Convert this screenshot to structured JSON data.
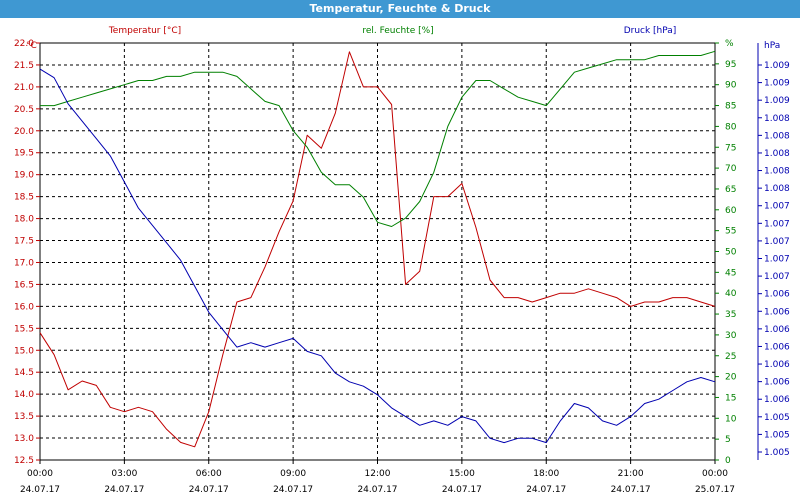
{
  "title": "Temperatur, Feuchte & Druck",
  "colors": {
    "titlebar": "#3f98d2",
    "temperature": "#c00000",
    "humidity": "#008000",
    "pressure": "#0000b0",
    "grid": "#000000"
  },
  "chart_data": {
    "type": "line",
    "title": "Temperatur, Feuchte & Druck",
    "grid": true,
    "x_ticks": [
      {
        "time": "00:00",
        "date": "24.07.17"
      },
      {
        "time": "03:00",
        "date": "24.07.17"
      },
      {
        "time": "06:00",
        "date": "24.07.17"
      },
      {
        "time": "09:00",
        "date": "24.07.17"
      },
      {
        "time": "12:00",
        "date": "24.07.17"
      },
      {
        "time": "15:00",
        "date": "24.07.17"
      },
      {
        "time": "18:00",
        "date": "24.07.17"
      },
      {
        "time": "21:00",
        "date": "24.07.17"
      },
      {
        "time": "00:00",
        "date": "25.07.17"
      }
    ],
    "xlim": [
      0,
      24
    ],
    "axes": {
      "temperature": {
        "unit": "°C",
        "ylim": [
          12.5,
          22.0
        ],
        "ticks": [
          "12.5",
          "13.0",
          "13.5",
          "14.0",
          "14.5",
          "15.0",
          "15.5",
          "16.0",
          "16.5",
          "17.0",
          "17.5",
          "18.0",
          "18.5",
          "19.0",
          "19.5",
          "20.0",
          "20.5",
          "21.0",
          "21.5",
          "22.0"
        ]
      },
      "humidity": {
        "unit": "%",
        "ylim": [
          0,
          100
        ],
        "ticks": [
          "0",
          "5",
          "10",
          "15",
          "20",
          "25",
          "30",
          "35",
          "40",
          "45",
          "50",
          "55",
          "60",
          "65",
          "70",
          "75",
          "80",
          "85",
          "90",
          "95",
          "%"
        ]
      },
      "pressure": {
        "unit": "hPa",
        "ylim": [
          1004.7,
          1009.5
        ],
        "ticks": [
          "1.005",
          "1.005",
          "1.005",
          "1.006",
          "1.006",
          "1.006",
          "1.006",
          "1.006",
          "1.006",
          "1.006",
          "1.007",
          "1.007",
          "1.007",
          "1.007",
          "1.007",
          "1.008",
          "1.008",
          "1.008",
          "1.008",
          "1.008",
          "1.009",
          "1.009",
          "1.009"
        ]
      }
    },
    "series": [
      {
        "name": "Temperatur [°C]",
        "axis": "temperature",
        "x": [
          0,
          0.5,
          1,
          1.5,
          2,
          2.5,
          3,
          3.5,
          4,
          4.5,
          5,
          5.5,
          6,
          6.5,
          7,
          7.5,
          8,
          8.5,
          9,
          9.5,
          10,
          10.5,
          11,
          11.5,
          12,
          12.5,
          13,
          13.5,
          14,
          14.5,
          15,
          15.5,
          16,
          16.5,
          17,
          17.5,
          18,
          18.5,
          19,
          19.5,
          20,
          20.5,
          21,
          21.5,
          22,
          22.5,
          23,
          23.5,
          24
        ],
        "values": [
          15.4,
          14.9,
          14.1,
          14.3,
          14.2,
          13.7,
          13.6,
          13.7,
          13.6,
          13.2,
          12.9,
          12.8,
          13.6,
          14.9,
          16.1,
          16.2,
          16.9,
          17.7,
          18.4,
          19.9,
          19.6,
          20.4,
          21.8,
          21.0,
          21.0,
          20.6,
          16.5,
          16.8,
          18.5,
          18.5,
          18.8,
          17.8,
          16.6,
          16.2,
          16.2,
          16.1,
          16.2,
          16.3,
          16.3,
          16.4,
          16.3,
          16.2,
          16.0,
          16.1,
          16.1,
          16.2,
          16.2,
          16.1,
          16.0
        ],
        "_note": "shifted"
      },
      {
        "name": "rel. Feuchte [%]",
        "axis": "humidity",
        "x": [
          0,
          0.5,
          1,
          1.5,
          2,
          2.5,
          3,
          3.5,
          4,
          4.5,
          5,
          5.5,
          6,
          6.5,
          7,
          7.5,
          8,
          8.5,
          9,
          9.5,
          10,
          10.5,
          11,
          11.5,
          12,
          12.5,
          13,
          13.5,
          14,
          14.5,
          15,
          15.5,
          16,
          16.5,
          17,
          17.5,
          18,
          18.5,
          19,
          19.5,
          20,
          20.5,
          21,
          21.5,
          22,
          22.5,
          23,
          23.5,
          24
        ],
        "values": [
          85,
          85,
          86,
          87,
          88,
          89,
          90,
          91,
          91,
          92,
          92,
          93,
          93,
          93,
          92,
          89,
          86,
          85,
          79,
          75,
          69,
          66,
          66,
          63,
          57,
          56,
          58,
          62,
          69,
          80,
          87,
          91,
          91,
          89,
          87,
          86,
          85,
          89,
          93,
          94,
          95,
          96,
          96,
          96,
          97,
          97,
          97,
          97,
          98
        ],
        "_note": "humidity-curve"
      },
      {
        "name": "Druck [hPa]",
        "axis": "pressure",
        "x": [
          0,
          0.5,
          1,
          1.5,
          2,
          2.5,
          3,
          3.5,
          4,
          4.5,
          5,
          5.5,
          6,
          6.5,
          7,
          7.5,
          8,
          8.5,
          9,
          9.5,
          10,
          10.5,
          11,
          11.5,
          12,
          12.5,
          13,
          13.5,
          14,
          14.5,
          15,
          15.5,
          16,
          16.5,
          17,
          17.5,
          18,
          18.5,
          19,
          19.5,
          20,
          20.5,
          21,
          21.5,
          22,
          22.5,
          23,
          23.5,
          24
        ],
        "values": [
          1009.2,
          1009.1,
          1008.8,
          1008.6,
          1008.4,
          1008.2,
          1007.9,
          1007.6,
          1007.4,
          1007.2,
          1007.0,
          1006.7,
          1006.4,
          1006.2,
          1006.0,
          1006.05,
          1006.0,
          1006.05,
          1006.1,
          1005.95,
          1005.9,
          1005.7,
          1005.6,
          1005.55,
          1005.45,
          1005.3,
          1005.2,
          1005.1,
          1005.15,
          1005.1,
          1005.2,
          1005.15,
          1004.95,
          1004.9,
          1004.95,
          1004.95,
          1004.9,
          1005.15,
          1005.35,
          1005.3,
          1005.15,
          1005.1,
          1005.2,
          1005.35,
          1005.4,
          1005.5,
          1005.6,
          1005.65,
          1005.6
        ],
        "_note": "pressure-curve"
      }
    ],
    "legend": [
      {
        "label": "Temperatur [°C]",
        "color": "#c00000"
      },
      {
        "label": "rel. Feuchte [%]",
        "color": "#008000"
      },
      {
        "label": "Druck [hPa]",
        "color": "#0000b0"
      }
    ],
    "unit_labels": {
      "left": "°C",
      "right1": "%",
      "right2": "hPa"
    }
  }
}
